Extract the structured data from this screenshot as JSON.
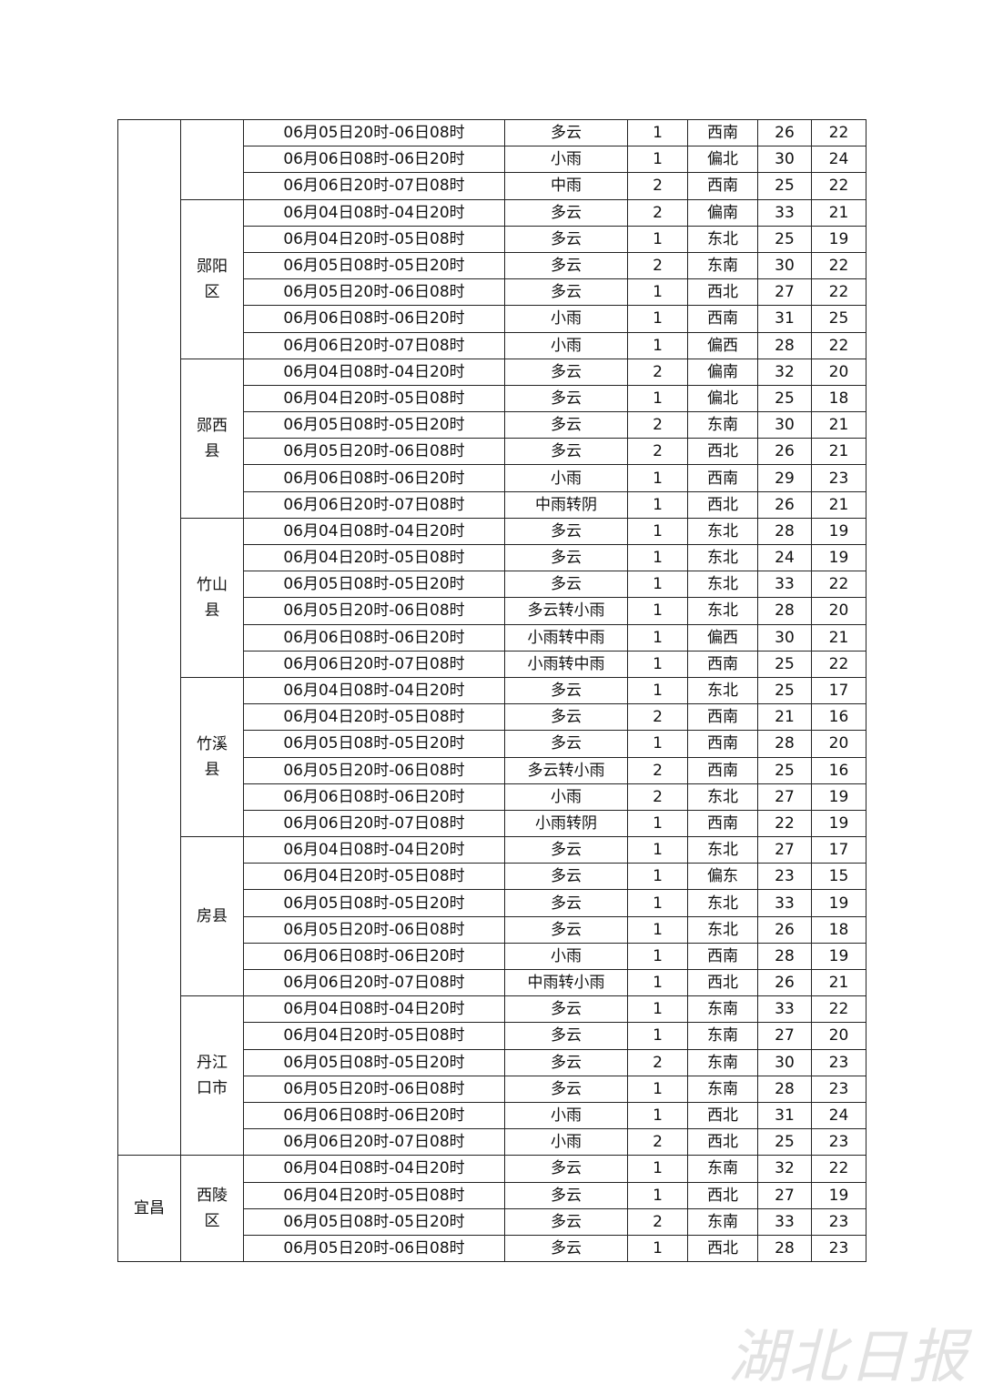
{
  "table": {
    "sections": [
      {
        "counties": [
          {
            "rows": [
              [
                "06月05日20时-06日08时",
                "多云",
                1,
                "西南",
                26,
                22
              ],
              [
                "06月06日08时-06日20时",
                "小雨",
                1,
                "偏北",
                30,
                24
              ],
              [
                "06月06日20时-07日08时",
                "中雨",
                2,
                "西南",
                25,
                22
              ]
            ]
          },
          {
            "name": "郧阳区",
            "rows": [
              [
                "06月04日08时-04日20时",
                "多云",
                2,
                "偏南",
                33,
                21
              ],
              [
                "06月04日20时-05日08时",
                "多云",
                1,
                "东北",
                25,
                19
              ],
              [
                "06月05日08时-05日20时",
                "多云",
                2,
                "东南",
                30,
                22
              ],
              [
                "06月05日20时-06日08时",
                "多云",
                1,
                "西北",
                27,
                22
              ],
              [
                "06月06日08时-06日20时",
                "小雨",
                1,
                "西南",
                31,
                25
              ],
              [
                "06月06日20时-07日08时",
                "小雨",
                1,
                "偏西",
                28,
                22
              ]
            ]
          },
          {
            "name": "郧西县",
            "rows": [
              [
                "06月04日08时-04日20时",
                "多云",
                2,
                "偏南",
                32,
                20
              ],
              [
                "06月04日20时-05日08时",
                "多云",
                1,
                "偏北",
                25,
                18
              ],
              [
                "06月05日08时-05日20时",
                "多云",
                2,
                "东南",
                30,
                21
              ],
              [
                "06月05日20时-06日08时",
                "多云",
                2,
                "西北",
                26,
                21
              ],
              [
                "06月06日08时-06日20时",
                "小雨",
                1,
                "西南",
                29,
                23
              ],
              [
                "06月06日20时-07日08时",
                "中雨转阴",
                1,
                "西北",
                26,
                21
              ]
            ]
          },
          {
            "name": "竹山县",
            "rows": [
              [
                "06月04日08时-04日20时",
                "多云",
                1,
                "东北",
                28,
                19
              ],
              [
                "06月04日20时-05日08时",
                "多云",
                1,
                "东北",
                24,
                19
              ],
              [
                "06月05日08时-05日20时",
                "多云",
                1,
                "东北",
                33,
                22
              ],
              [
                "06月05日20时-06日08时",
                "多云转小雨",
                1,
                "东北",
                28,
                20
              ],
              [
                "06月06日08时-06日20时",
                "小雨转中雨",
                1,
                "偏西",
                30,
                21
              ],
              [
                "06月06日20时-07日08时",
                "小雨转中雨",
                1,
                "西南",
                25,
                22
              ]
            ]
          },
          {
            "name": "竹溪县",
            "rows": [
              [
                "06月04日08时-04日20时",
                "多云",
                1,
                "东北",
                25,
                17
              ],
              [
                "06月04日20时-05日08时",
                "多云",
                2,
                "西南",
                21,
                16
              ],
              [
                "06月05日08时-05日20时",
                "多云",
                1,
                "西南",
                28,
                20
              ],
              [
                "06月05日20时-06日08时",
                "多云转小雨",
                2,
                "西南",
                25,
                16
              ],
              [
                "06月06日08时-06日20时",
                "小雨",
                2,
                "东北",
                27,
                19
              ],
              [
                "06月06日20时-07日08时",
                "小雨转阴",
                1,
                "西南",
                22,
                19
              ]
            ]
          },
          {
            "name": "房县",
            "rows": [
              [
                "06月04日08时-04日20时",
                "多云",
                1,
                "东北",
                27,
                17
              ],
              [
                "06月04日20时-05日08时",
                "多云",
                1,
                "偏东",
                23,
                15
              ],
              [
                "06月05日08时-05日20时",
                "多云",
                1,
                "东北",
                33,
                19
              ],
              [
                "06月05日20时-06日08时",
                "多云",
                1,
                "东北",
                26,
                18
              ],
              [
                "06月06日08时-06日20时",
                "小雨",
                1,
                "西南",
                28,
                19
              ],
              [
                "06月06日20时-07日08时",
                "中雨转小雨",
                1,
                "西北",
                26,
                21
              ]
            ]
          },
          {
            "name": "丹江口市",
            "rows": [
              [
                "06月04日08时-04日20时",
                "多云",
                1,
                "东南",
                33,
                22
              ],
              [
                "06月04日20时-05日08时",
                "多云",
                1,
                "东南",
                27,
                20
              ],
              [
                "06月05日08时-05日20时",
                "多云",
                2,
                "东南",
                30,
                23
              ],
              [
                "06月05日20时-06日08时",
                "多云",
                1,
                "东南",
                28,
                23
              ],
              [
                "06月06日08时-06日20时",
                "小雨",
                1,
                "西北",
                31,
                24
              ],
              [
                "06月06日20时-07日08时",
                "小雨",
                2,
                "西北",
                25,
                23
              ]
            ]
          }
        ]
      },
      {
        "city": "宜昌",
        "counties": [
          {
            "name": "西陵区",
            "rows": [
              [
                "06月04日08时-04日20时",
                "多云",
                1,
                "东南",
                32,
                22
              ],
              [
                "06月04日20时-05日08时",
                "多云",
                1,
                "西北",
                27,
                19
              ],
              [
                "06月05日08时-05日20时",
                "多云",
                2,
                "东南",
                33,
                23
              ],
              [
                "06月05日20时-06日08时",
                "多云",
                1,
                "西北",
                28,
                23
              ]
            ]
          }
        ]
      }
    ]
  },
  "watermark": "湖北日报"
}
